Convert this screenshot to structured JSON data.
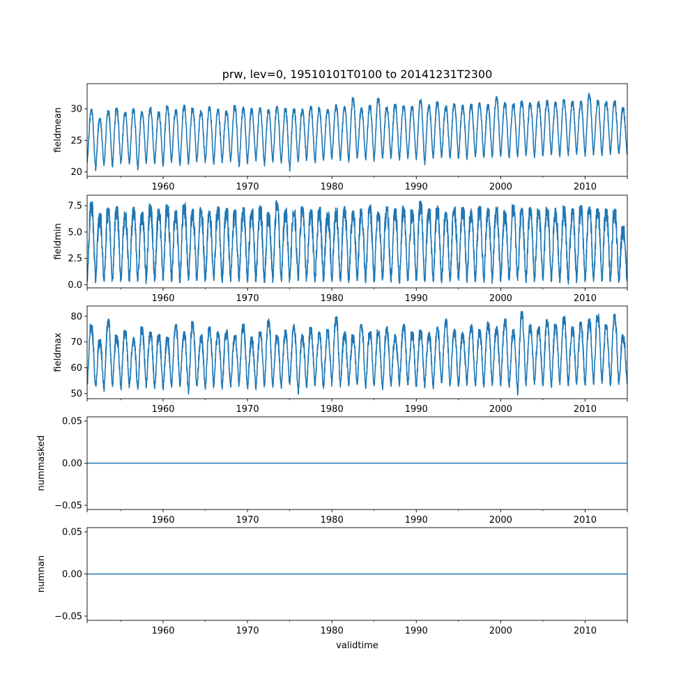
{
  "chart_data": {
    "type": "line",
    "title": "prw, lev=0, 19510101T0100 to 20141231T2300",
    "xlabel": "validtime",
    "x_range": [
      1951.0,
      2015.0
    ],
    "x_ticks": [
      1960,
      1970,
      1980,
      1990,
      2000,
      2010
    ],
    "x_tick_labels": [
      "1960",
      "1970",
      "1980",
      "1990",
      "2000",
      "2010"
    ],
    "line_color": "#1f77b4",
    "panels": [
      {
        "ylabel": "fieldmean",
        "ylim": [
          19.3,
          34.0
        ],
        "y_ticks": [
          20,
          25,
          30
        ],
        "y_tick_labels": [
          "20",
          "25",
          "30"
        ],
        "series": {
          "kind": "seasonal",
          "cycle_start": 1951.0,
          "cycle_end": 2015.0,
          "trough_values": [
            21.5,
            20.2,
            21.0,
            20.8,
            21.3,
            21.1,
            20.3,
            21.4,
            21.2,
            20.9,
            21.5,
            21.0,
            21.3,
            21.6,
            21.4,
            21.2,
            21.5,
            21.7,
            20.6,
            21.3,
            21.8,
            21.0,
            21.6,
            21.4,
            20.2,
            21.5,
            21.9,
            21.3,
            21.7,
            22.0,
            21.8,
            21.6,
            22.0,
            21.9,
            21.7,
            22.1,
            22.2,
            21.8,
            22.0,
            21.9,
            21.0,
            22.1,
            22.3,
            22.0,
            22.2,
            21.9,
            22.4,
            22.1,
            22.3,
            22.5,
            22.2,
            22.4,
            22.6,
            22.3,
            22.5,
            22.7,
            22.4,
            22.6,
            22.8,
            22.5,
            22.7,
            22.6,
            22.8,
            22.7
          ],
          "peak_values": [
            30.0,
            28.5,
            29.8,
            30.2,
            29.5,
            30.1,
            29.7,
            30.3,
            29.6,
            30.5,
            29.9,
            30.6,
            30.2,
            29.8,
            30.4,
            30.0,
            29.7,
            30.6,
            30.3,
            30.1,
            30.2,
            29.9,
            30.4,
            30.1,
            30.2,
            30.0,
            30.5,
            30.3,
            30.0,
            30.7,
            30.4,
            31.8,
            30.2,
            30.6,
            31.7,
            30.3,
            30.8,
            30.5,
            30.4,
            31.6,
            30.7,
            31.2,
            30.5,
            30.9,
            30.6,
            30.8,
            31.0,
            30.7,
            32.0,
            31.1,
            30.9,
            31.3,
            31.0,
            31.2,
            31.4,
            31.1,
            31.5,
            31.2,
            31.3,
            32.5,
            31.4,
            31.2,
            31.3,
            30.2
          ],
          "jitter": 1.4
        }
      },
      {
        "ylabel": "fieldmin",
        "ylim": [
          -0.3,
          8.5
        ],
        "y_ticks": [
          0.0,
          2.5,
          5.0,
          7.5
        ],
        "y_tick_labels": [
          "0.0",
          "2.5",
          "5.0",
          "7.5"
        ],
        "series": {
          "kind": "seasonal",
          "cycle_start": 1951.0,
          "cycle_end": 2015.0,
          "trough_values": [
            0.3,
            0.4,
            0.2,
            0.3,
            0.4,
            0.3,
            0.2,
            0.4,
            0.3,
            0.4,
            0.3,
            0.2,
            0.4,
            0.3,
            0.3,
            0.4,
            0.2,
            0.3,
            0.4,
            0.3,
            0.3,
            0.2,
            0.4,
            0.3,
            0.3,
            0.4,
            0.2,
            0.3,
            0.4,
            0.3,
            0.3,
            0.2,
            0.4,
            0.3,
            0.3,
            0.4,
            0.3,
            0.2,
            0.4,
            0.3,
            0.3,
            0.4,
            0.2,
            0.3,
            0.4,
            0.3,
            0.3,
            0.2,
            0.4,
            0.3,
            0.3,
            0.4,
            0.2,
            0.3,
            0.4,
            0.3,
            0.3,
            0.2,
            0.4,
            0.3,
            0.3,
            0.4,
            0.3,
            0.4
          ],
          "peak_values": [
            7.9,
            6.8,
            7.3,
            7.5,
            7.0,
            7.4,
            6.9,
            7.7,
            7.2,
            7.6,
            7.1,
            7.8,
            7.2,
            7.4,
            7.0,
            7.5,
            7.3,
            7.1,
            7.4,
            7.2,
            7.5,
            6.9,
            8.0,
            7.3,
            7.1,
            7.5,
            7.2,
            7.4,
            7.0,
            7.3,
            7.5,
            7.2,
            7.3,
            7.6,
            7.1,
            7.4,
            7.3,
            7.5,
            7.2,
            8.1,
            7.3,
            7.5,
            7.1,
            7.4,
            7.6,
            7.2,
            7.5,
            7.3,
            7.4,
            7.1,
            7.6,
            7.3,
            7.5,
            7.2,
            7.4,
            7.3,
            7.5,
            7.2,
            7.6,
            7.4,
            7.3,
            7.5,
            7.2,
            5.6
          ],
          "jitter": 2.6
        }
      },
      {
        "ylabel": "fieldmax",
        "ylim": [
          48.0,
          84.0
        ],
        "y_ticks": [
          50,
          60,
          70,
          80
        ],
        "y_tick_labels": [
          "50",
          "60",
          "70",
          "80"
        ],
        "series": {
          "kind": "seasonal",
          "cycle_start": 1951.0,
          "cycle_end": 2015.0,
          "trough_values": [
            53.5,
            52.0,
            51.0,
            53.0,
            51.5,
            52.5,
            51.0,
            53.0,
            52.0,
            51.5,
            52.5,
            53.0,
            50.0,
            52.5,
            51.5,
            53.0,
            52.0,
            52.5,
            53.5,
            52.0,
            51.5,
            53.0,
            52.5,
            52.0,
            53.5,
            50.0,
            52.5,
            53.0,
            52.0,
            53.5,
            52.5,
            53.0,
            53.5,
            52.0,
            53.0,
            51.5,
            52.5,
            53.5,
            53.0,
            52.5,
            53.0,
            52.0,
            53.5,
            53.0,
            52.5,
            53.5,
            53.0,
            52.5,
            53.5,
            53.0,
            52.5,
            49.5,
            53.0,
            53.5,
            53.0,
            52.5,
            53.5,
            53.0,
            53.5,
            53.0,
            53.5,
            54.0,
            53.0,
            53.5
          ],
          "peak_values": [
            77.0,
            71.0,
            79.0,
            73.0,
            75.0,
            72.0,
            76.0,
            74.0,
            73.0,
            72.0,
            77.0,
            74.0,
            78.0,
            73.0,
            76.0,
            74.0,
            75.0,
            73.0,
            77.0,
            72.0,
            74.0,
            79.0,
            73.0,
            75.0,
            77.0,
            73.0,
            76.0,
            74.0,
            75.0,
            80.0,
            74.0,
            73.0,
            77.0,
            74.0,
            75.0,
            76.0,
            73.0,
            77.0,
            74.0,
            75.0,
            74.0,
            76.0,
            79.0,
            75.0,
            74.0,
            77.0,
            75.0,
            78.0,
            76.0,
            79.0,
            75.0,
            82.0,
            77.0,
            76.0,
            79.0,
            77.0,
            80.0,
            76.0,
            78.0,
            79.0,
            81.0,
            77.0,
            81.0,
            73.0
          ],
          "jitter": 6.5
        }
      },
      {
        "ylabel": "nummasked",
        "ylim": [
          -0.055,
          0.055
        ],
        "y_ticks": [
          -0.05,
          0.0,
          0.05
        ],
        "y_tick_labels": [
          "−0.05",
          "0.00",
          "0.05"
        ],
        "series": {
          "kind": "constant",
          "value": 0.0
        }
      },
      {
        "ylabel": "numnan",
        "ylim": [
          -0.055,
          0.055
        ],
        "y_ticks": [
          -0.05,
          0.0,
          0.05
        ],
        "y_tick_labels": [
          "−0.05",
          "0.00",
          "0.05"
        ],
        "series": {
          "kind": "constant",
          "value": 0.0
        }
      }
    ]
  }
}
